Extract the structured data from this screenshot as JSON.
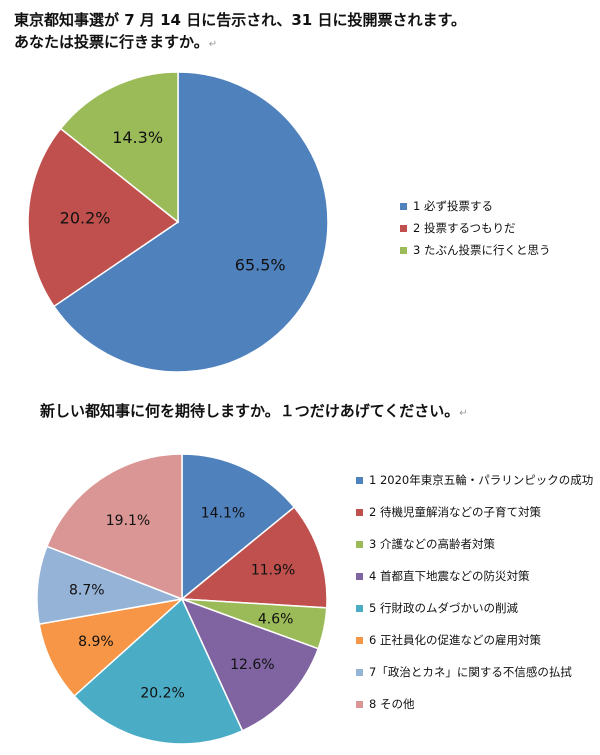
{
  "question1": {
    "line1": "東京都知事選が 7 月 14 日に告示され、31 日に投開票されます。",
    "line2": "あなたは投票に行きますか。",
    "return_mark": "↵"
  },
  "question2": {
    "text": "新しい都知事に何を期待しますか。１つだけあげてください。",
    "return_mark": "↵"
  },
  "chart_data": [
    {
      "type": "pie",
      "title": "",
      "categories": [
        "1 必ず投票する",
        "2 投票するつもりだ",
        "3 たぶん投票に行くと思う"
      ],
      "values": [
        65.5,
        20.2,
        14.3
      ],
      "labels": [
        "65.5%",
        "20.2%",
        "14.3%"
      ],
      "colors": [
        "#4f81bd",
        "#c0504d",
        "#9bbb59"
      ],
      "start": "12 o'clock, clockwise",
      "legend": "right"
    },
    {
      "type": "pie",
      "title": "",
      "categories": [
        "1 2020年東京五輪・パラリンピックの成功",
        "2 待機児童解消などの子育て対策",
        "3 介護などの高齢者対策",
        "4 首都直下地震などの防災対策",
        "5 行財政のムダづかいの削減",
        "6 正社員化の促進などの雇用対策",
        "7「政治とカネ」に関する不信感の払拭",
        "8 その他"
      ],
      "values": [
        14.1,
        11.9,
        4.6,
        12.6,
        20.2,
        8.9,
        8.7,
        19.1
      ],
      "labels": [
        "14.1%",
        "11.9%",
        "4.6%",
        "12.6%",
        "20.2%",
        "8.9%",
        "8.7%",
        "19.1%"
      ],
      "colors": [
        "#4f81bd",
        "#c0504d",
        "#9bbb59",
        "#8064a2",
        "#4bacc6",
        "#f79646",
        "#95b3d7",
        "#d99694"
      ],
      "start": "12 o'clock, clockwise",
      "legend": "right"
    }
  ]
}
